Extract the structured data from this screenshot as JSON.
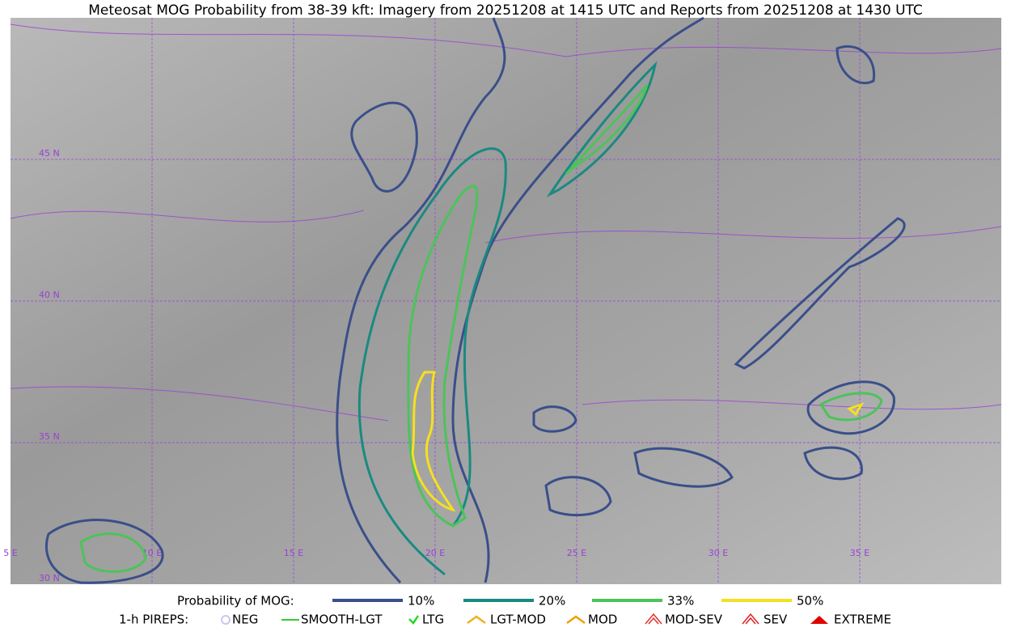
{
  "title": "Meteosat MOG Probability from 38-39 kft: Imagery from 20251208 at 1415 UTC and Reports from 20251208 at 1430 UTC",
  "latitude_labels": [
    "45 N",
    "40 N",
    "35 N",
    "30 N"
  ],
  "longitude_labels": [
    "5 E",
    "10 E",
    "15 E",
    "20 E",
    "25 E",
    "30 E",
    "35 E"
  ],
  "probability_legend": {
    "label": "Probability of MOG:",
    "items": [
      {
        "label": "10%",
        "color": "#3a4f8a"
      },
      {
        "label": "20%",
        "color": "#1a8a80"
      },
      {
        "label": "33%",
        "color": "#4cc35a"
      },
      {
        "label": "50%",
        "color": "#f5e01e"
      }
    ]
  },
  "pirep_legend": {
    "label": "1-h PIREPS:",
    "items": [
      {
        "label": "NEG",
        "color": "#c8c8f0"
      },
      {
        "label": "SMOOTH-LGT",
        "color": "#33cc33"
      },
      {
        "label": "LTG",
        "color": "#22dd22"
      },
      {
        "label": "LGT-MOD",
        "color": "#f0b020"
      },
      {
        "label": "MOD",
        "color": "#f0a000"
      },
      {
        "label": "MOD-SEV",
        "color": "#e03030"
      },
      {
        "label": "SEV",
        "color": "#e02020"
      },
      {
        "label": "EXTREME",
        "color": "#e00000"
      }
    ]
  }
}
